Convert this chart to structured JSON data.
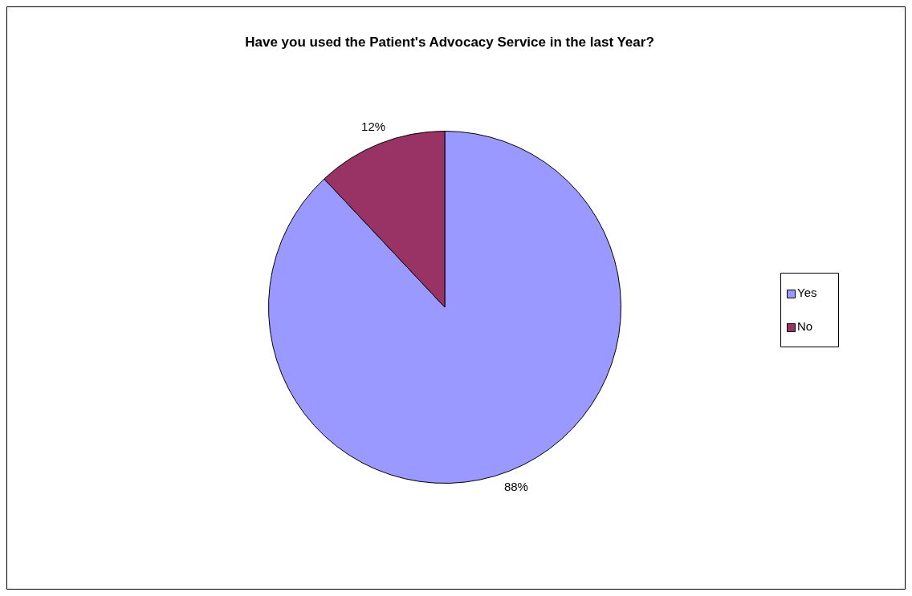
{
  "chart_data": {
    "type": "pie",
    "title": "Have you used the Patient's Advocacy Service in the last Year?",
    "categories": [
      "Yes",
      "No"
    ],
    "values": [
      88,
      12
    ],
    "colors": [
      "#9999ff",
      "#993366"
    ],
    "value_labels": [
      "88%",
      "12%"
    ],
    "legend": "right"
  }
}
